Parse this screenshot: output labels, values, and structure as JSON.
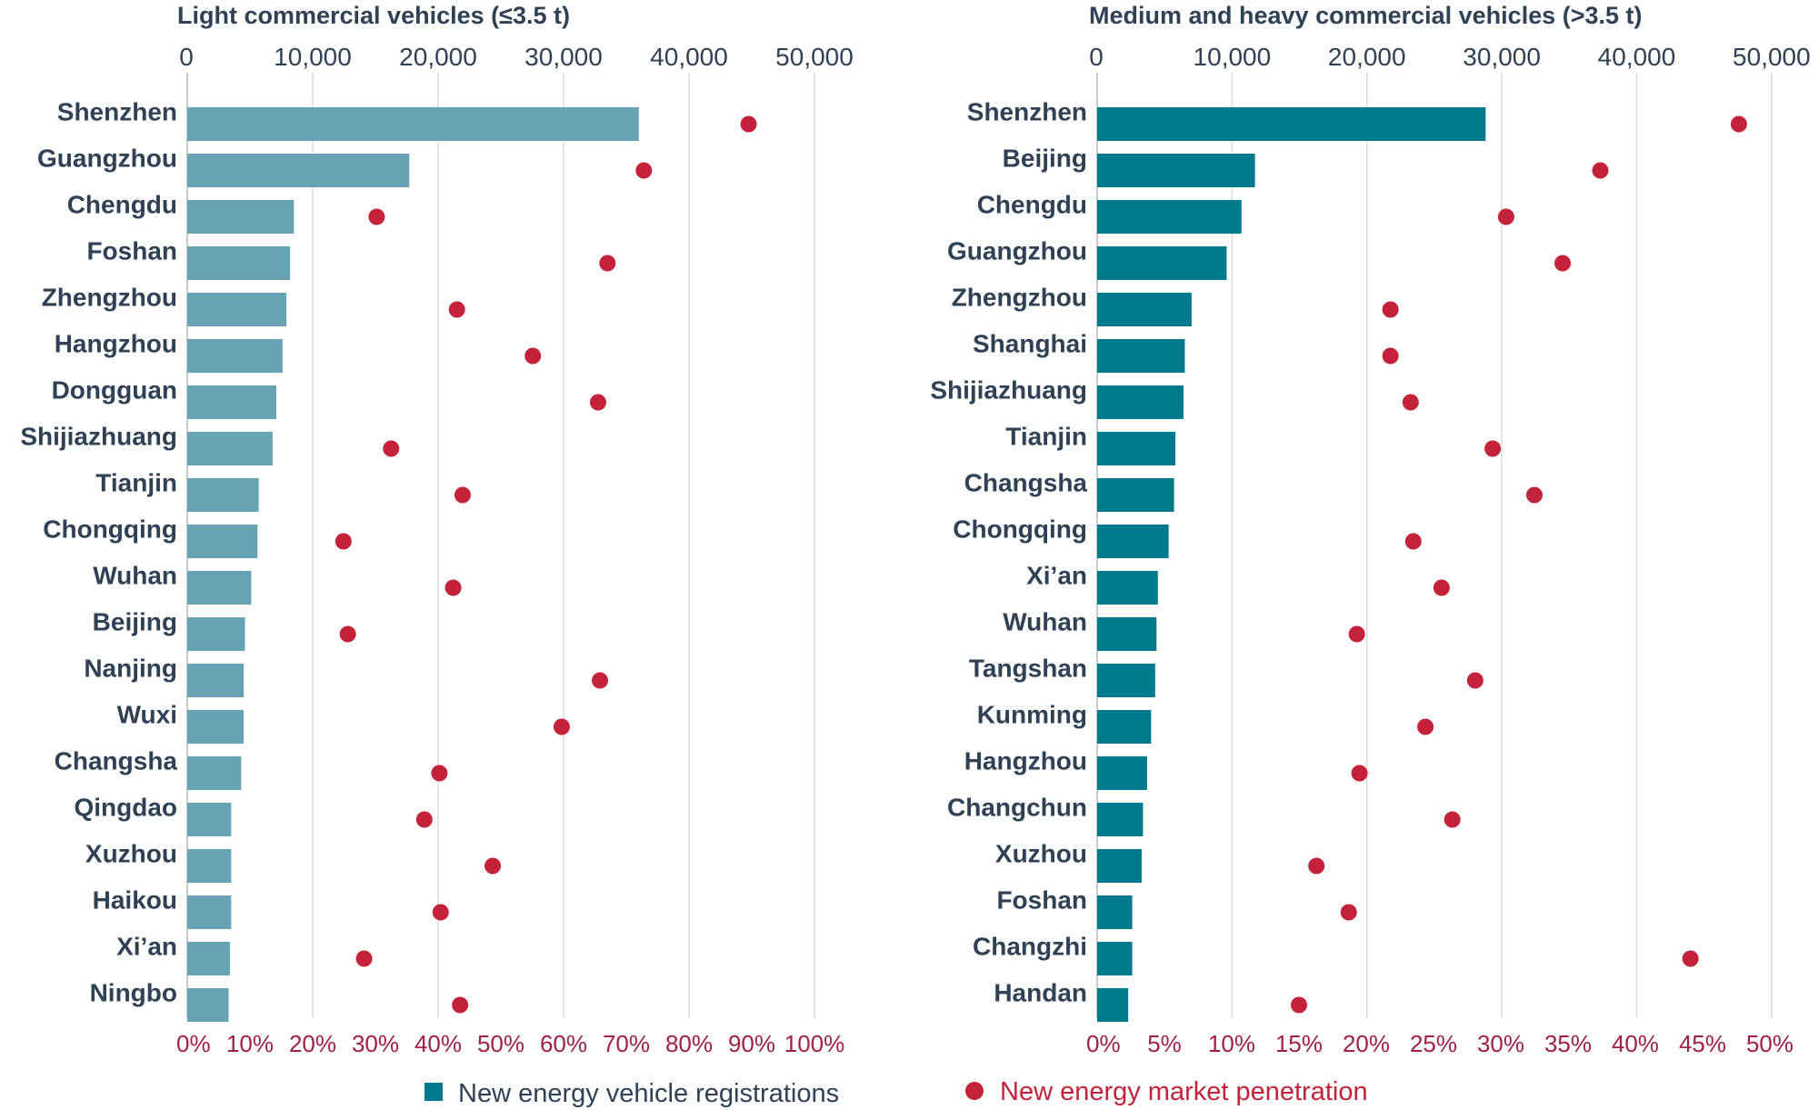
{
  "legend": {
    "registrations_label": "New energy vehicle registrations",
    "penetration_label": "New energy market penetration"
  },
  "colors": {
    "light_bar": "#66a3b5",
    "heavy_bar": "#007a8c",
    "dot": "#c4223a",
    "label_text": "#2f4155",
    "pct_text": "#a31f44"
  },
  "chart_data": [
    {
      "type": "bar",
      "orientation": "horizontal",
      "title": "Light commercial vehicles (≤3.5 t)",
      "top_axis": {
        "label": "New energy vehicle registrations",
        "range": [
          0,
          50000
        ],
        "ticks": [
          "0",
          "10,000",
          "20,000",
          "30,000",
          "40,000",
          "50,000"
        ]
      },
      "bottom_axis": {
        "label": "New energy market penetration",
        "range": [
          0,
          100
        ],
        "ticks": [
          "0%",
          "10%",
          "20%",
          "30%",
          "40%",
          "50%",
          "60%",
          "70%",
          "80%",
          "90%",
          "100%"
        ]
      },
      "categories": [
        "Shenzhen",
        "Guangzhou",
        "Chengdu",
        "Foshan",
        "Zhengzhou",
        "Hangzhou",
        "Dongguan",
        "Shijiazhuang",
        "Tianjin",
        "Chongqing",
        "Wuhan",
        "Beijing",
        "Nanjing",
        "Wuxi",
        "Changsha",
        "Qingdao",
        "Xuzhou",
        "Haikou",
        "Xi’an",
        "Ningbo"
      ],
      "series": [
        {
          "name": "New energy vehicle registrations",
          "values": [
            36000,
            17700,
            8500,
            8200,
            7900,
            7600,
            7100,
            6800,
            5700,
            5600,
            5100,
            4600,
            4500,
            4500,
            4300,
            3500,
            3500,
            3500,
            3400,
            3300
          ]
        },
        {
          "name": "New energy market penetration",
          "values": [
            89.5,
            72.8,
            30.2,
            67,
            43,
            55.1,
            65.5,
            32.5,
            43.9,
            24.9,
            42.4,
            25.6,
            65.8,
            59.7,
            40.2,
            37.8,
            48.7,
            40.4,
            28.2,
            43.5
          ]
        }
      ]
    },
    {
      "type": "bar",
      "orientation": "horizontal",
      "title": "Medium and heavy commercial vehicles (>3.5 t)",
      "top_axis": {
        "label": "New energy vehicle registrations",
        "range": [
          0,
          50000
        ],
        "ticks": [
          "0",
          "10,000",
          "20,000",
          "30,000",
          "40,000",
          "50,000"
        ]
      },
      "bottom_axis": {
        "label": "New energy market penetration",
        "range": [
          0,
          50
        ],
        "ticks": [
          "0%",
          "5%",
          "10%",
          "15%",
          "20%",
          "25%",
          "30%",
          "35%",
          "40%",
          "45%",
          "50%"
        ]
      },
      "categories": [
        "Shenzhen",
        "Beijing",
        "Chengdu",
        "Guangzhou",
        "Zhengzhou",
        "Shanghai",
        "Shijiazhuang",
        "Tianjin",
        "Changsha",
        "Chongqing",
        "Xi’an",
        "Wuhan",
        "Tangshan",
        "Kunming",
        "Hangzhou",
        "Changchun",
        "Xuzhou",
        "Foshan",
        "Changzhi",
        "Handan"
      ],
      "series": [
        {
          "name": "New energy vehicle registrations",
          "values": [
            28800,
            11700,
            10700,
            9600,
            7000,
            6500,
            6400,
            5800,
            5700,
            5300,
            4500,
            4400,
            4300,
            4000,
            3700,
            3400,
            3300,
            2600,
            2600,
            2300
          ]
        },
        {
          "name": "New energy market penetration",
          "values": [
            47.7,
            37.4,
            30.4,
            34.6,
            21.8,
            21.8,
            23.3,
            29.4,
            32.5,
            23.5,
            25.6,
            19.3,
            28.1,
            24.4,
            19.5,
            26.4,
            16.3,
            18.7,
            44.1,
            15
          ]
        }
      ]
    }
  ]
}
